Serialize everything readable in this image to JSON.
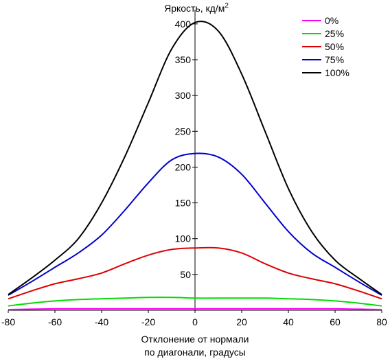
{
  "chart_data": {
    "type": "line",
    "title": "Яркость, кд/м",
    "title_superscript": "2",
    "xlabel": [
      "Отклонение от нормали",
      "по диагонали, градусы"
    ],
    "xlim": [
      -80,
      80
    ],
    "ylim": [
      0,
      420
    ],
    "x_ticks": [
      -80,
      -60,
      -40,
      -20,
      0,
      20,
      40,
      60,
      80
    ],
    "y_ticks": [
      50,
      100,
      150,
      200,
      250,
      300,
      350,
      400
    ],
    "legend_position": "top-right",
    "series": [
      {
        "name": "0%",
        "color": "#ff00ff",
        "x": [
          -80,
          -70,
          -60,
          -50,
          -40,
          -30,
          -20,
          -10,
          0,
          10,
          20,
          30,
          40,
          50,
          60,
          70,
          80
        ],
        "y": [
          1,
          1.5,
          2,
          2,
          2,
          2,
          2,
          2,
          2,
          2,
          2,
          2,
          2,
          2,
          2,
          1.5,
          1
        ]
      },
      {
        "name": "25%",
        "color": "#00dd00",
        "x": [
          -80,
          -70,
          -60,
          -50,
          -40,
          -30,
          -20,
          -10,
          0,
          10,
          20,
          30,
          40,
          50,
          60,
          70,
          80
        ],
        "y": [
          6,
          10,
          13,
          15,
          16,
          17,
          18,
          18,
          17,
          17,
          17,
          17,
          16,
          15,
          13,
          10,
          6
        ]
      },
      {
        "name": "50%",
        "color": "#dd0000",
        "x": [
          -80,
          -70,
          -60,
          -50,
          -40,
          -30,
          -20,
          -10,
          0,
          10,
          20,
          30,
          40,
          50,
          60,
          70,
          80
        ],
        "y": [
          16,
          27,
          37,
          44,
          52,
          65,
          77,
          85,
          87,
          87,
          80,
          65,
          52,
          44,
          37,
          27,
          16
        ]
      },
      {
        "name": "75%",
        "color": "#0000cc",
        "x": [
          -80,
          -70,
          -60,
          -50,
          -40,
          -30,
          -20,
          -10,
          0,
          10,
          20,
          30,
          40,
          50,
          60,
          70,
          80
        ],
        "y": [
          21,
          40,
          60,
          80,
          105,
          140,
          178,
          210,
          219,
          214,
          190,
          150,
          110,
          80,
          60,
          40,
          21
        ]
      },
      {
        "name": "100%",
        "color": "#000000",
        "x": [
          -80,
          -70,
          -60,
          -50,
          -40,
          -30,
          -20,
          -10,
          0,
          10,
          20,
          30,
          40,
          50,
          60,
          70,
          80
        ],
        "y": [
          22,
          45,
          70,
          100,
          150,
          215,
          290,
          365,
          402,
          390,
          330,
          250,
          170,
          110,
          70,
          45,
          22
        ]
      }
    ]
  }
}
